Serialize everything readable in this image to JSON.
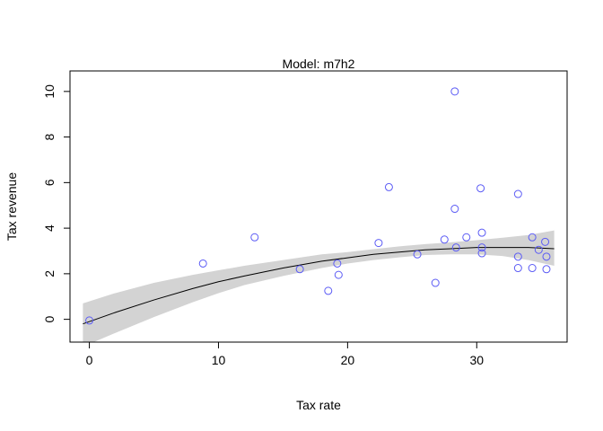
{
  "chart_data": {
    "type": "scatter",
    "title": "Model: m7h2",
    "xlabel": "Tax rate",
    "ylabel": "Tax revenue",
    "xlim": [
      -1.5,
      37
    ],
    "ylim": [
      -1,
      10.9
    ],
    "x_ticks": [
      0,
      10,
      20,
      30
    ],
    "y_ticks": [
      0,
      2,
      4,
      6,
      8,
      10
    ],
    "grid": false,
    "point_color": "#5b5bf5",
    "line_color": "#000000",
    "band_color": "#d3d3d3",
    "points": [
      {
        "x": 0,
        "y": -0.05
      },
      {
        "x": 8.8,
        "y": 2.45
      },
      {
        "x": 12.8,
        "y": 3.6
      },
      {
        "x": 16.3,
        "y": 2.2
      },
      {
        "x": 18.5,
        "y": 1.25
      },
      {
        "x": 19.2,
        "y": 2.45
      },
      {
        "x": 19.3,
        "y": 1.95
      },
      {
        "x": 22.4,
        "y": 3.35
      },
      {
        "x": 23.2,
        "y": 5.8
      },
      {
        "x": 25.4,
        "y": 2.85
      },
      {
        "x": 26.8,
        "y": 1.6
      },
      {
        "x": 27.5,
        "y": 3.5
      },
      {
        "x": 28.3,
        "y": 10.0
      },
      {
        "x": 28.3,
        "y": 4.85
      },
      {
        "x": 28.4,
        "y": 3.15
      },
      {
        "x": 29.2,
        "y": 3.6
      },
      {
        "x": 30.3,
        "y": 5.75
      },
      {
        "x": 30.4,
        "y": 3.8
      },
      {
        "x": 30.4,
        "y": 3.15
      },
      {
        "x": 30.4,
        "y": 2.9
      },
      {
        "x": 33.2,
        "y": 5.5
      },
      {
        "x": 33.2,
        "y": 2.75
      },
      {
        "x": 33.2,
        "y": 2.25
      },
      {
        "x": 34.3,
        "y": 3.6
      },
      {
        "x": 34.3,
        "y": 2.25
      },
      {
        "x": 34.8,
        "y": 3.05
      },
      {
        "x": 35.3,
        "y": 3.4
      },
      {
        "x": 35.4,
        "y": 2.75
      },
      {
        "x": 35.4,
        "y": 2.2
      }
    ],
    "fit": {
      "x": [
        -0.5,
        2,
        5,
        8,
        10,
        12,
        15,
        18,
        20,
        22,
        24,
        26,
        28,
        30,
        32,
        34,
        36
      ],
      "y": [
        -0.2,
        0.3,
        0.85,
        1.35,
        1.65,
        1.9,
        2.25,
        2.55,
        2.7,
        2.85,
        2.95,
        3.05,
        3.1,
        3.15,
        3.15,
        3.15,
        3.1
      ],
      "lower": [
        -1.2,
        -0.6,
        0.1,
        0.75,
        1.15,
        1.5,
        1.9,
        2.25,
        2.45,
        2.6,
        2.72,
        2.82,
        2.85,
        2.85,
        2.78,
        2.6,
        2.35
      ],
      "upper": [
        0.7,
        1.15,
        1.6,
        1.95,
        2.15,
        2.35,
        2.6,
        2.85,
        2.95,
        3.08,
        3.2,
        3.3,
        3.38,
        3.47,
        3.58,
        3.7,
        3.9
      ]
    }
  }
}
